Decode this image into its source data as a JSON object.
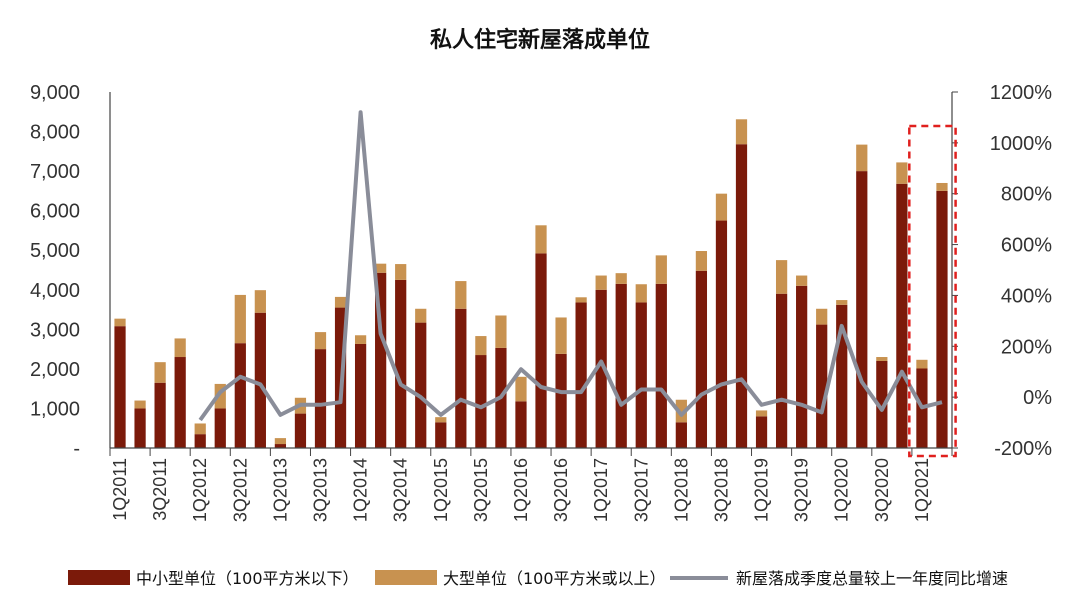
{
  "chart_data": {
    "type": "bar+line",
    "title": "私人住宅新屋落成单位",
    "categories": [
      "1Q2011",
      "2Q2011",
      "3Q2011",
      "4Q2011",
      "1Q2012",
      "2Q2012",
      "3Q2012",
      "4Q2012",
      "1Q2013",
      "2Q2013",
      "3Q2013",
      "4Q2013",
      "1Q2014",
      "2Q2014",
      "3Q2014",
      "4Q2014",
      "1Q2015",
      "2Q2015",
      "3Q2015",
      "4Q2015",
      "1Q2016",
      "2Q2016",
      "3Q2016",
      "4Q2016",
      "1Q2017",
      "2Q2017",
      "3Q2017",
      "4Q2017",
      "1Q2018",
      "2Q2018",
      "3Q2018",
      "4Q2018",
      "1Q2019",
      "2Q2019",
      "3Q2019",
      "4Q2019",
      "1Q2020",
      "2Q2020",
      "3Q2020",
      "4Q2020",
      "1Q2021",
      "2Q2021"
    ],
    "x_tick_labels": [
      "1Q2011",
      "3Q2011",
      "1Q2012",
      "3Q2012",
      "1Q2013",
      "3Q2013",
      "1Q2014",
      "3Q2014",
      "1Q2015",
      "3Q2015",
      "1Q2016",
      "3Q2016",
      "1Q2017",
      "3Q2017",
      "1Q2018",
      "3Q2018",
      "1Q2019",
      "3Q2019",
      "1Q2020",
      "3Q2020",
      "1Q2021"
    ],
    "y_left": {
      "min": 0,
      "max": 9000,
      "ticks": [
        "-",
        "1,000",
        "2,000",
        "3,000",
        "4,000",
        "5,000",
        "6,000",
        "7,000",
        "8,000",
        "9,000"
      ]
    },
    "y_right": {
      "min": -200,
      "max": 1200,
      "ticks": [
        "-200%",
        "0%",
        "200%",
        "400%",
        "600%",
        "800%",
        "1000%",
        "1200%"
      ]
    },
    "series": [
      {
        "name": "中小型单位（100平方米以下）",
        "type": "bar",
        "color": "#7B1A0A",
        "values": [
          3080,
          1000,
          1650,
          2300,
          350,
          1000,
          2650,
          3420,
          100,
          870,
          2500,
          3550,
          2630,
          4430,
          4250,
          3170,
          650,
          3520,
          2350,
          2530,
          1180,
          4920,
          2380,
          3680,
          4000,
          4150,
          3680,
          4150,
          650,
          4480,
          5750,
          7680,
          800,
          3900,
          4100,
          3120,
          3620,
          7000,
          2200,
          6680,
          2010,
          6500
        ]
      },
      {
        "name": "大型单位（100平方米或以上）",
        "type": "bar",
        "color": "#C89250",
        "values": [
          190,
          200,
          520,
          470,
          270,
          620,
          1220,
          570,
          150,
          400,
          430,
          270,
          220,
          230,
          400,
          350,
          130,
          700,
          480,
          820,
          620,
          710,
          920,
          130,
          360,
          270,
          460,
          720,
          570,
          500,
          680,
          630,
          150,
          850,
          260,
          400,
          120,
          670,
          100,
          540,
          220,
          200
        ]
      },
      {
        "name": "新屋落成季度总量较上一年度同比增速",
        "type": "line",
        "color": "#8A8D99",
        "axis": "right",
        "values": [
          null,
          null,
          null,
          null,
          -90,
          20,
          80,
          50,
          -70,
          -30,
          -30,
          -20,
          1120,
          250,
          50,
          0,
          -70,
          -10,
          -40,
          0,
          110,
          40,
          20,
          20,
          140,
          -30,
          30,
          30,
          -70,
          10,
          50,
          70,
          -30,
          -10,
          -30,
          -60,
          280,
          60,
          -50,
          100,
          -40,
          -20
        ]
      }
    ],
    "highlight": {
      "from": "1Q2021",
      "to": "2Q2021",
      "style": "dashed-red-box"
    },
    "legend_position": "bottom",
    "grid": false
  }
}
